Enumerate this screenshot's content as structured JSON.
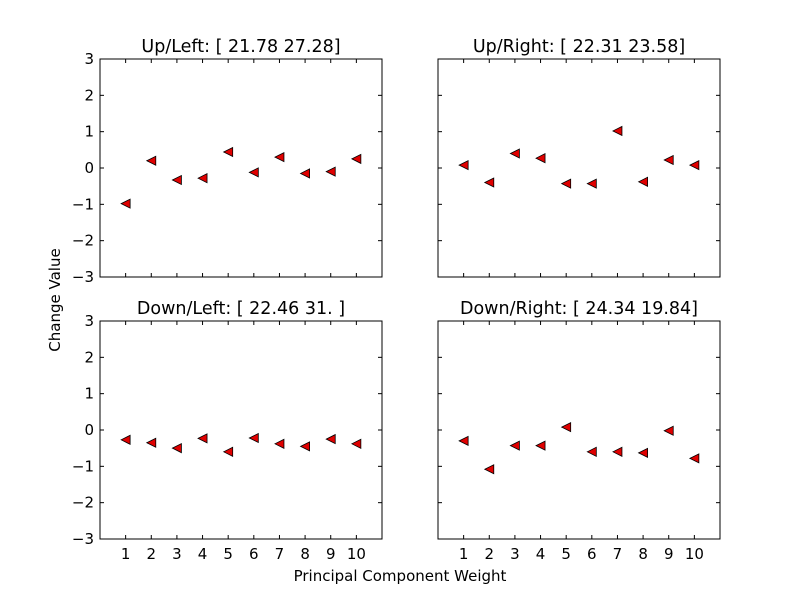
{
  "figure": {
    "xlabel": "Principal Component Weight",
    "ylabel": "Change Value"
  },
  "chart_data": [
    {
      "type": "scatter",
      "title": "Up/Left: [ 21.78  27.28]",
      "x": [
        1,
        2,
        3,
        4,
        5,
        6,
        7,
        8,
        9,
        10
      ],
      "y": [
        -0.98,
        0.2,
        -0.33,
        -0.28,
        0.44,
        -0.12,
        0.3,
        -0.15,
        -0.1,
        0.25
      ],
      "xlim": [
        0,
        11
      ],
      "ylim": [
        -3,
        3
      ],
      "xticks": [
        1,
        2,
        3,
        4,
        5,
        6,
        7,
        8,
        9,
        10
      ],
      "yticks": [
        -3,
        -2,
        -1,
        0,
        1,
        2,
        3
      ],
      "marker": "left-triangle",
      "color": "#e00000"
    },
    {
      "type": "scatter",
      "title": "Up/Right: [ 22.31  23.58]",
      "x": [
        1,
        2,
        3,
        4,
        5,
        6,
        7,
        8,
        9,
        10
      ],
      "y": [
        0.08,
        -0.4,
        0.4,
        0.27,
        -0.43,
        -0.43,
        1.02,
        -0.38,
        0.22,
        0.08
      ],
      "xlim": [
        0,
        11
      ],
      "ylim": [
        -3,
        3
      ],
      "xticks": [
        1,
        2,
        3,
        4,
        5,
        6,
        7,
        8,
        9,
        10
      ],
      "yticks": [
        -3,
        -2,
        -1,
        0,
        1,
        2,
        3
      ],
      "marker": "left-triangle",
      "color": "#e00000"
    },
    {
      "type": "scatter",
      "title": "Down/Left: [ 22.46  31.  ]",
      "x": [
        1,
        2,
        3,
        4,
        5,
        6,
        7,
        8,
        9,
        10
      ],
      "y": [
        -0.27,
        -0.35,
        -0.5,
        -0.23,
        -0.6,
        -0.22,
        -0.38,
        -0.45,
        -0.25,
        -0.38
      ],
      "xlim": [
        0,
        11
      ],
      "ylim": [
        -3,
        3
      ],
      "xticks": [
        1,
        2,
        3,
        4,
        5,
        6,
        7,
        8,
        9,
        10
      ],
      "yticks": [
        -3,
        -2,
        -1,
        0,
        1,
        2,
        3
      ],
      "marker": "left-triangle",
      "color": "#e00000"
    },
    {
      "type": "scatter",
      "title": "Down/Right: [ 24.34  19.84]",
      "x": [
        1,
        2,
        3,
        4,
        5,
        6,
        7,
        8,
        9,
        10
      ],
      "y": [
        -0.3,
        -1.08,
        -0.43,
        -0.43,
        0.08,
        -0.6,
        -0.6,
        -0.63,
        -0.02,
        -0.78
      ],
      "xlim": [
        0,
        11
      ],
      "ylim": [
        -3,
        3
      ],
      "xticks": [
        1,
        2,
        3,
        4,
        5,
        6,
        7,
        8,
        9,
        10
      ],
      "yticks": [
        -3,
        -2,
        -1,
        0,
        1,
        2,
        3
      ],
      "marker": "left-triangle",
      "color": "#e00000"
    }
  ]
}
